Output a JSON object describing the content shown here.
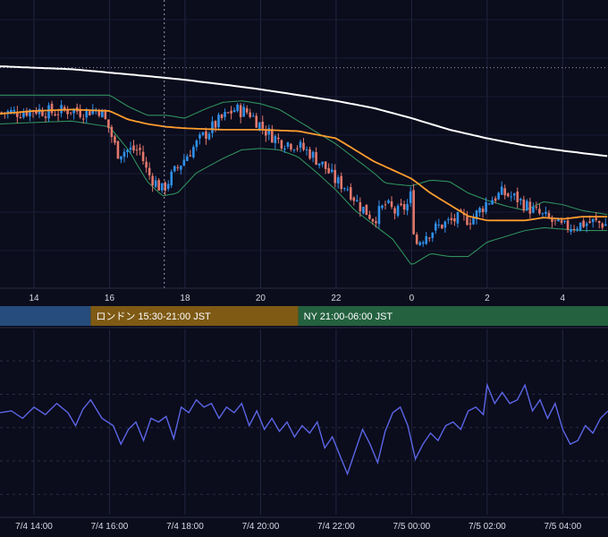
{
  "chart_data": [
    {
      "type": "candlestick",
      "panel": "price",
      "ylim": [
        0,
        100
      ],
      "x_ticks": [
        "14",
        "16",
        "18",
        "20",
        "22",
        "0",
        "2",
        "4"
      ],
      "x_tick_hours": [
        14,
        16,
        18,
        20,
        22,
        24,
        26,
        28
      ],
      "x_range_hours": [
        13.1,
        29.2
      ],
      "grid": true,
      "crosshair_hour": 17.45,
      "horizontal_dotted_level": 76.5,
      "candle_step_hours": 0.0833,
      "close_anchors": {
        "hours": [
          13.1,
          13.6,
          14.0,
          14.5,
          15.0,
          15.3,
          15.6,
          15.75,
          16.0,
          16.2,
          16.5,
          16.8,
          17.0,
          17.4,
          17.7,
          18.1,
          18.5,
          18.9,
          19.3,
          19.7,
          20.1,
          20.5,
          20.9,
          21.3,
          21.7,
          22.0,
          22.3,
          22.6,
          23.0,
          23.3,
          23.6,
          23.9,
          23.97,
          24.1,
          24.4,
          24.8,
          25.2,
          25.6,
          26.0,
          26.4,
          26.8,
          27.2,
          27.6,
          28.0,
          28.4,
          28.8,
          29.2
        ],
        "close": [
          61,
          61,
          62,
          61,
          62,
          61,
          62,
          62,
          55,
          47,
          48,
          48,
          40,
          34,
          40,
          47,
          53,
          58,
          62,
          61,
          55,
          51,
          50,
          47,
          42,
          37,
          35,
          29,
          24,
          29,
          26,
          29,
          32,
          15,
          19,
          22,
          24,
          24,
          30,
          33,
          31,
          27,
          24,
          21,
          22,
          23,
          22
        ]
      },
      "series": [
        {
          "name": "",
          "kind": "sma_long",
          "color": "#ffffff",
          "hours": [
            13.1,
            14.0,
            15.0,
            16.0,
            17.0,
            18.0,
            19.0,
            20.0,
            21.0,
            22.0,
            23.0,
            24.0,
            25.0,
            26.0,
            27.0,
            28.0,
            29.2
          ],
          "values": [
            77,
            76.5,
            76,
            74.8,
            73.6,
            72.3,
            70.7,
            69,
            67,
            65,
            62.5,
            59,
            55,
            52,
            49.5,
            47.7,
            45.8
          ]
        },
        {
          "name": "",
          "kind": "sma_mid",
          "color": "#ff9d2e",
          "hours": [
            13.1,
            14.0,
            15.0,
            16.0,
            16.5,
            17.0,
            17.5,
            18.0,
            19.0,
            20.0,
            21.0,
            22.0,
            22.5,
            23.0,
            23.5,
            24.0,
            24.5,
            25.0,
            25.5,
            26.0,
            26.5,
            27.0,
            27.5,
            28.0,
            28.5,
            29.2
          ],
          "values": [
            60.5,
            61.5,
            62,
            61.5,
            58.5,
            57,
            56,
            55.5,
            55,
            55,
            54.5,
            52,
            48,
            44,
            41,
            38,
            33,
            29,
            25,
            23.5,
            23.5,
            23.5,
            24.5,
            24,
            24.8,
            24.8
          ]
        },
        {
          "name": "",
          "kind": "bollinger_upper",
          "color": "#2f8f5c",
          "hours": [
            13.1,
            14.0,
            15.0,
            16.0,
            16.5,
            17.0,
            17.5,
            18.0,
            18.5,
            19.0,
            19.5,
            20.0,
            20.5,
            21.0,
            21.5,
            22.0,
            22.5,
            23.0,
            23.3,
            23.6,
            24.0,
            24.5,
            25.0,
            25.5,
            26.0,
            26.5,
            27.0,
            27.5,
            28.0,
            28.5,
            29.2
          ],
          "values": [
            67,
            67,
            67,
            67,
            63,
            60,
            60,
            59,
            62,
            64.5,
            65,
            64,
            62,
            58,
            54,
            50,
            45,
            40,
            36.5,
            36,
            35.5,
            37.5,
            37,
            33,
            30.5,
            28.5,
            27,
            30,
            29,
            27,
            25.5
          ]
        },
        {
          "name": "",
          "kind": "bollinger_lower",
          "color": "#2f8f5c",
          "hours": [
            13.1,
            14.0,
            15.0,
            16.0,
            16.5,
            17.0,
            17.4,
            17.8,
            18.3,
            19.0,
            19.5,
            20.0,
            20.5,
            21.0,
            21.5,
            22.0,
            22.5,
            23.0,
            23.5,
            24.0,
            24.5,
            25.0,
            25.5,
            26.0,
            26.5,
            27.0,
            27.5,
            28.0,
            28.5,
            29.2
          ],
          "values": [
            57,
            57.5,
            58,
            56,
            48,
            37,
            32,
            33,
            40,
            45,
            48,
            48.5,
            48,
            45.5,
            40,
            34,
            27,
            22,
            17,
            8,
            12,
            11,
            11,
            16,
            18,
            20,
            21,
            20.5,
            20,
            20
          ]
        }
      ],
      "sessions": [
        {
          "label": "",
          "color": "#254c7c",
          "start_hour": 13.1,
          "end_hour": 15.5
        },
        {
          "label": "ロンドン 15:30-21:00 JST",
          "color": "#7e5a14",
          "start_hour": 15.5,
          "end_hour": 21.0
        },
        {
          "label": "NY 21:00-06:00 JST",
          "color": "#24613f",
          "start_hour": 21.0,
          "end_hour": 29.2
        }
      ]
    },
    {
      "type": "line",
      "panel": "oscillator",
      "ylim": [
        0,
        100
      ],
      "x_ticks": [
        "7/4 14:00",
        "7/4 16:00",
        "7/4 18:00",
        "7/4 20:00",
        "7/4 22:00",
        "7/5 00:00",
        "7/5 02:00",
        "7/5 04:00"
      ],
      "x_tick_hours": [
        14,
        16,
        18,
        20,
        22,
        24,
        26,
        28
      ],
      "grid": true,
      "series": [
        {
          "name": "",
          "color": "#5b66e6",
          "hours": [
            13.1,
            13.4,
            13.7,
            14.0,
            14.3,
            14.6,
            14.9,
            15.1,
            15.3,
            15.5,
            15.8,
            16.1,
            16.3,
            16.5,
            16.7,
            16.9,
            17.1,
            17.3,
            17.5,
            17.7,
            17.9,
            18.1,
            18.3,
            18.5,
            18.7,
            18.9,
            19.1,
            19.3,
            19.5,
            19.7,
            19.9,
            20.1,
            20.3,
            20.5,
            20.7,
            20.9,
            21.1,
            21.3,
            21.5,
            21.7,
            21.9,
            22.1,
            22.3,
            22.5,
            22.7,
            22.9,
            23.1,
            23.3,
            23.5,
            23.7,
            23.9,
            24.1,
            24.3,
            24.5,
            24.7,
            24.9,
            25.1,
            25.3,
            25.5,
            25.7,
            25.9,
            26.0,
            26.2,
            26.4,
            26.6,
            26.8,
            27.0,
            27.2,
            27.4,
            27.6,
            27.8,
            28.0,
            28.2,
            28.4,
            28.6,
            28.8,
            29.0,
            29.2
          ],
          "values": [
            55,
            56,
            52,
            58,
            54,
            60,
            55,
            48,
            57,
            62,
            52,
            48,
            38,
            46,
            50,
            40,
            52,
            50,
            53,
            41,
            58,
            55,
            62,
            58,
            60,
            52,
            58,
            55,
            60,
            48,
            56,
            46,
            52,
            45,
            50,
            42,
            48,
            44,
            50,
            36,
            42,
            32,
            22,
            34,
            46,
            38,
            28,
            45,
            55,
            58,
            48,
            30,
            38,
            44,
            40,
            48,
            50,
            46,
            56,
            58,
            54,
            70,
            60,
            66,
            60,
            62,
            70,
            56,
            62,
            52,
            60,
            46,
            38,
            40,
            48,
            44,
            52,
            56
          ]
        }
      ]
    }
  ]
}
